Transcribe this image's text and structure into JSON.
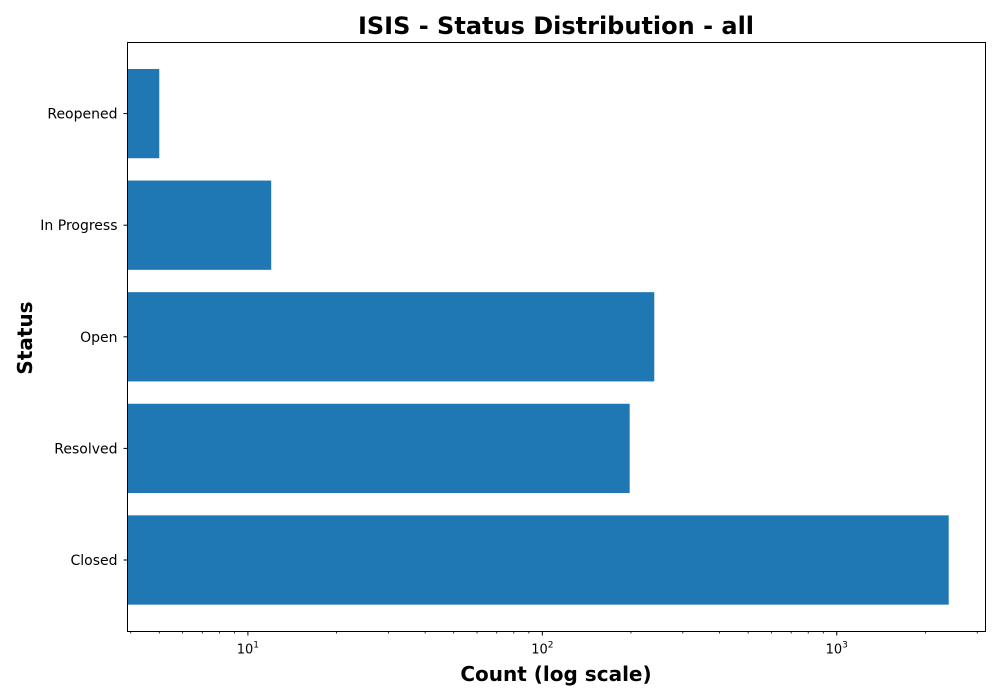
{
  "chart_data": {
    "type": "bar",
    "orientation": "horizontal",
    "title": "ISIS - Status Distribution - all",
    "xlabel": "Count (log scale)",
    "ylabel": "Status",
    "x_scale": "log",
    "xlim": [
      3.9,
      3200
    ],
    "categories": [
      "Closed",
      "Resolved",
      "Open",
      "In Progress",
      "Reopened"
    ],
    "values": [
      2400,
      198,
      240,
      12,
      5
    ],
    "x_major_ticks": [
      {
        "base": "10",
        "exponent": "1",
        "value": 10
      },
      {
        "base": "10",
        "exponent": "2",
        "value": 100
      },
      {
        "base": "10",
        "exponent": "3",
        "value": 1000
      }
    ],
    "bar_color": "#1f77b4",
    "grid": false,
    "legend": "none"
  }
}
